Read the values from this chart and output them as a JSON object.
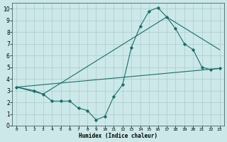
{
  "title": "",
  "xlabel": "Humidex (Indice chaleur)",
  "ylabel": "",
  "background_color": "#cce8e8",
  "grid_color": "#aacccc",
  "line_color": "#1a6e6a",
  "xlim": [
    -0.5,
    23.5
  ],
  "ylim": [
    0,
    10.5
  ],
  "xticks": [
    0,
    1,
    2,
    3,
    4,
    5,
    6,
    7,
    8,
    9,
    10,
    11,
    12,
    13,
    14,
    15,
    16,
    17,
    18,
    19,
    20,
    21,
    22,
    23
  ],
  "yticks": [
    0,
    1,
    2,
    3,
    4,
    5,
    6,
    7,
    8,
    9,
    10
  ],
  "series": [
    {
      "x": [
        0,
        2,
        3,
        4,
        5,
        6,
        7,
        8,
        9,
        10,
        11,
        12,
        13,
        14,
        15,
        16,
        17,
        18,
        19,
        20,
        21,
        22,
        23
      ],
      "y": [
        3.3,
        3.0,
        2.7,
        2.1,
        2.1,
        2.1,
        1.5,
        1.3,
        0.5,
        0.8,
        2.5,
        3.5,
        6.7,
        8.5,
        9.8,
        10.1,
        9.3,
        8.3,
        7.0,
        6.5,
        5.0,
        4.8,
        4.9
      ],
      "has_marker": true
    },
    {
      "x": [
        0,
        23
      ],
      "y": [
        3.3,
        4.9
      ],
      "has_marker": false
    },
    {
      "x": [
        0,
        3,
        17,
        23
      ],
      "y": [
        3.3,
        2.7,
        9.3,
        6.5
      ],
      "has_marker": false
    }
  ]
}
